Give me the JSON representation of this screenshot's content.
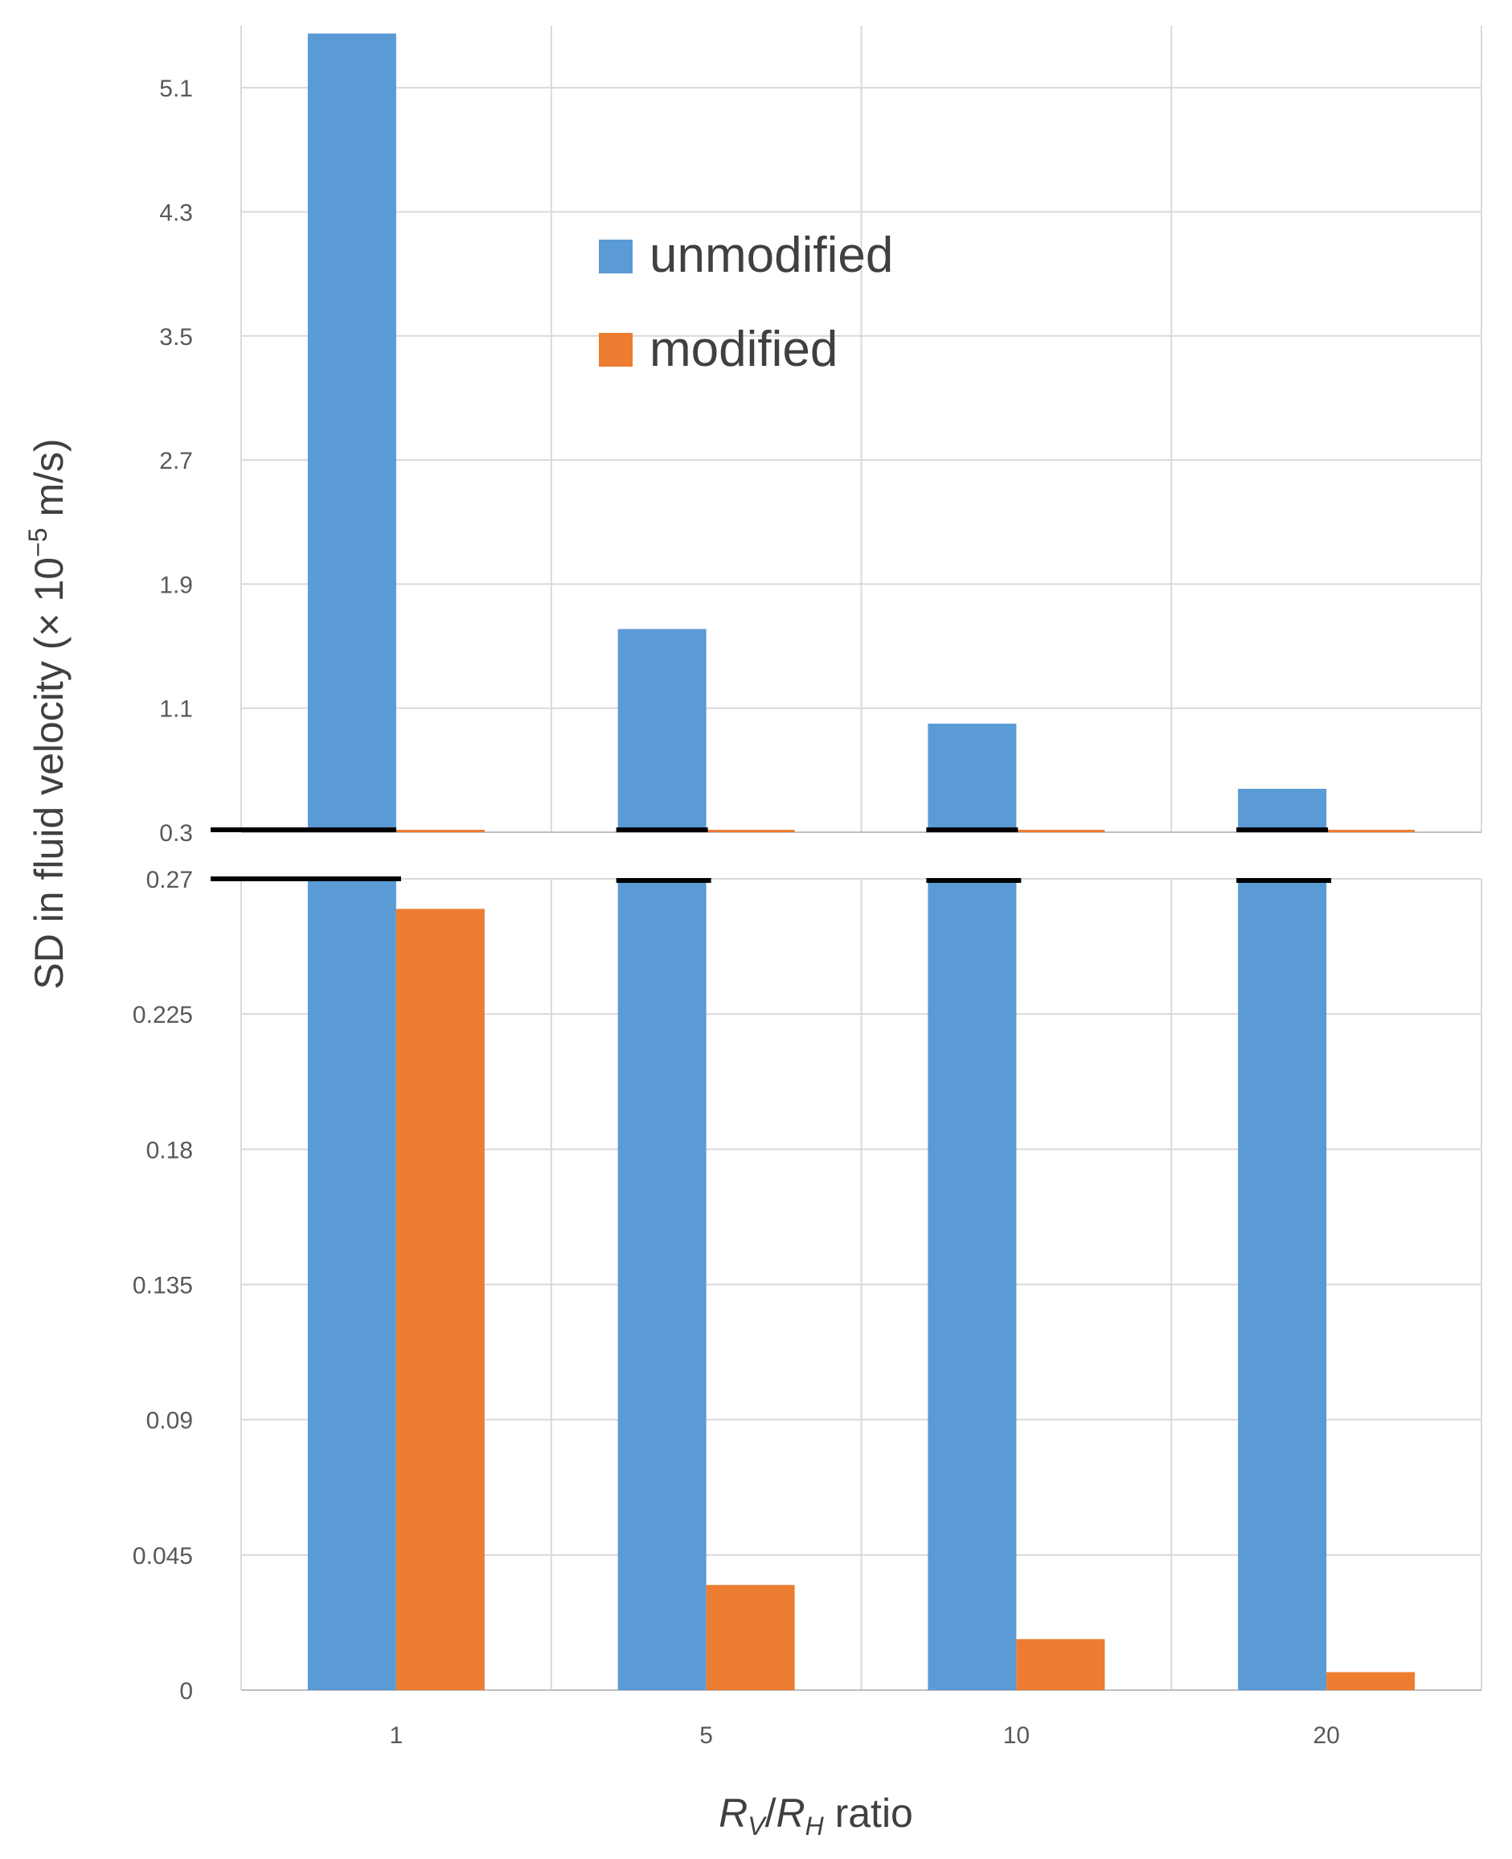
{
  "chart_data": {
    "type": "bar",
    "broken_axis": true,
    "categories": [
      "1",
      "5",
      "10",
      "20"
    ],
    "series": [
      {
        "name": "unmodified",
        "color": "#5B9BD5",
        "values": [
          5.45,
          1.61,
          1.0,
          0.58
        ]
      },
      {
        "name": "modified",
        "color": "#ED7D31",
        "values": [
          0.26,
          0.035,
          0.017,
          0.006
        ]
      }
    ],
    "ylabel_parts": {
      "prefix": "SD in fluid velocity (× 10",
      "exponent": "−5",
      "suffix": " m/s)"
    },
    "xlabel_parts": {
      "r1": "R",
      "sub1": "V",
      "slash": "/",
      "r2": "R",
      "sub2": "H",
      "suffix": " ratio"
    },
    "upper_panel": {
      "ylim": [
        0.3,
        5.5
      ],
      "ticks": [
        0.3,
        1.1,
        1.9,
        2.7,
        3.5,
        4.3,
        5.1
      ],
      "tick_labels": [
        "0.3",
        "1.1",
        "1.9",
        "2.7",
        "3.5",
        "4.3",
        "5.1"
      ]
    },
    "lower_panel": {
      "ylim": [
        0,
        0.27
      ],
      "ticks": [
        0,
        0.045,
        0.09,
        0.135,
        0.18,
        0.225,
        0.27
      ],
      "tick_labels": [
        "0",
        "0.045",
        "0.09",
        "0.135",
        "0.18",
        "0.225",
        "0.27"
      ]
    },
    "legend_position": "upper-center",
    "grid": true
  }
}
